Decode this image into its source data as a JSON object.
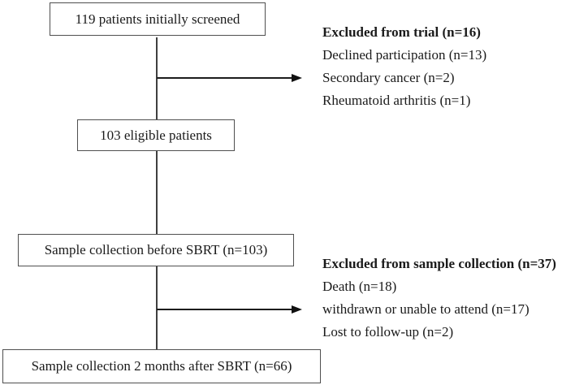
{
  "flowchart": {
    "boxes": [
      {
        "label": "119 patients initially screened"
      },
      {
        "label": "103 eligible patients"
      },
      {
        "label": "Sample collection before SBRT (n=103)"
      },
      {
        "label": "Sample collection 2 months after SBRT (n=66)"
      }
    ],
    "exclusions": [
      {
        "heading": "Excluded from trial (n=16)",
        "items": [
          "Declined participation (n=13)",
          "Secondary cancer (n=2)",
          "Rheumatoid arthritis (n=1)"
        ]
      },
      {
        "heading": "Excluded from sample collection (n=37)",
        "items": [
          "Death (n=18)",
          "withdrawn or unable to attend (n=17)",
          "Lost to follow-up (n=2)"
        ]
      }
    ],
    "colors": {
      "background": "#ffffff",
      "box_border": "#4f4f4f",
      "line": "#3f3f3f",
      "text": "#1a1a1a"
    }
  }
}
